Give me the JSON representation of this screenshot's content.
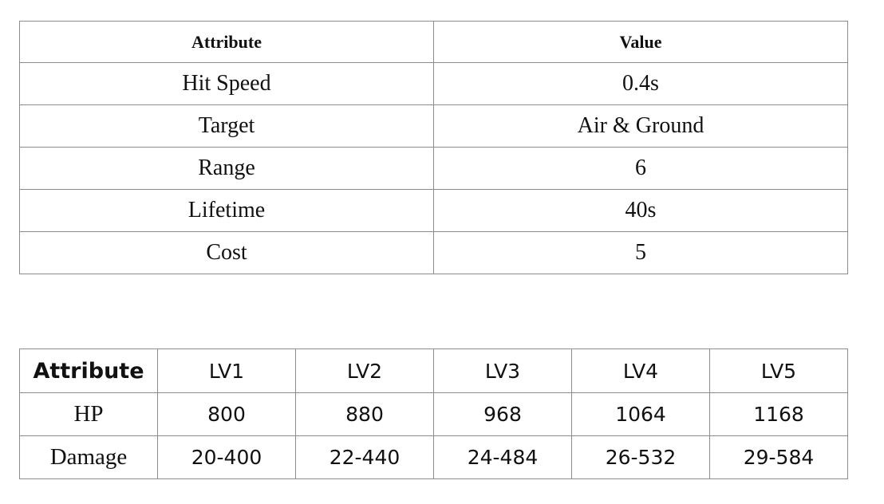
{
  "table1": {
    "headers": [
      "Attribute",
      "Value"
    ],
    "rows": [
      [
        "Hit Speed",
        "0.4s"
      ],
      [
        "Target",
        "Air & Ground"
      ],
      [
        "Range",
        "6"
      ],
      [
        "Lifetime",
        "40s"
      ],
      [
        "Cost",
        "5"
      ]
    ]
  },
  "table2": {
    "headers": [
      "Attribute",
      "LV1",
      "LV2",
      "LV3",
      "LV4",
      "LV5"
    ],
    "rows": [
      [
        "HP",
        "800",
        "880",
        "968",
        "1064",
        "1168"
      ],
      [
        "Damage",
        "20-400",
        "22-440",
        "24-484",
        "26-532",
        "29-584"
      ]
    ]
  }
}
